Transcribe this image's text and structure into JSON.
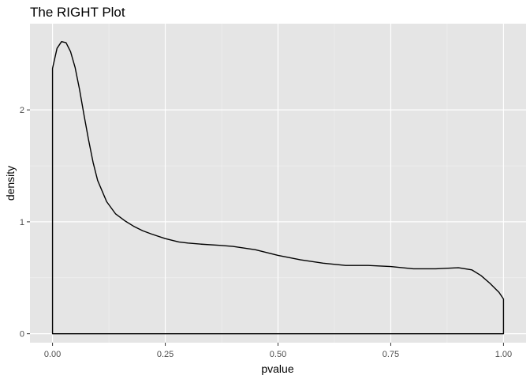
{
  "chart_data": {
    "type": "area",
    "title": "The RIGHT Plot",
    "xlabel": "pvalue",
    "ylabel": "density",
    "xlim": [
      -0.05,
      1.05
    ],
    "ylim": [
      -0.08,
      2.77
    ],
    "x_ticks": [
      0.0,
      0.25,
      0.5,
      0.75,
      1.0
    ],
    "x_tick_labels": [
      "0.00",
      "0.25",
      "0.50",
      "0.75",
      "1.00"
    ],
    "y_ticks": [
      0,
      1,
      2
    ],
    "y_tick_labels": [
      "0",
      "1",
      "2"
    ],
    "grid": true,
    "legend": "none",
    "series": [
      {
        "x": [
          0.0,
          0.01,
          0.02,
          0.03,
          0.04,
          0.05,
          0.06,
          0.07,
          0.08,
          0.09,
          0.1,
          0.12,
          0.14,
          0.16,
          0.18,
          0.2,
          0.22,
          0.25,
          0.28,
          0.3,
          0.33,
          0.37,
          0.4,
          0.45,
          0.5,
          0.55,
          0.6,
          0.65,
          0.7,
          0.75,
          0.8,
          0.85,
          0.9,
          0.93,
          0.95,
          0.97,
          0.99,
          1.0
        ],
        "y": [
          2.37,
          2.55,
          2.61,
          2.6,
          2.52,
          2.38,
          2.18,
          1.95,
          1.73,
          1.53,
          1.37,
          1.18,
          1.07,
          1.01,
          0.96,
          0.92,
          0.89,
          0.85,
          0.82,
          0.81,
          0.8,
          0.79,
          0.78,
          0.75,
          0.7,
          0.66,
          0.63,
          0.61,
          0.61,
          0.6,
          0.58,
          0.58,
          0.59,
          0.57,
          0.52,
          0.45,
          0.37,
          0.31
        ]
      }
    ],
    "colors": {
      "panel": "#e5e5e5",
      "grid_major": "#ffffff",
      "grid_minor": "#f2f2f2",
      "line": "#000000",
      "tick_label": "#4d4d4d",
      "tick_mark": "#333333"
    }
  }
}
